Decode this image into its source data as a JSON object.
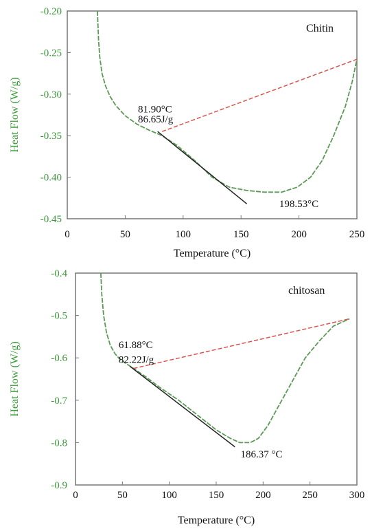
{
  "colors": {
    "curve": "#5a9a55",
    "baseline": "#d9534f",
    "tangent": "#222222",
    "tick_label_y": "#3a9a3a",
    "axis_frame": "#777777"
  },
  "chart_data": [
    {
      "type": "line",
      "title": "Chitin",
      "xlabel": "Temperature (°C)",
      "ylabel": "Heat Flow (W/g)",
      "xlim": [
        0,
        250
      ],
      "ylim": [
        -0.45,
        -0.2
      ],
      "x_ticks": [
        0,
        50,
        100,
        150,
        200,
        250
      ],
      "x_tick_labels": [
        "0",
        "50",
        "100",
        "150",
        "200",
        "250"
      ],
      "y_ticks": [
        -0.2,
        -0.25,
        -0.3,
        -0.35,
        -0.4,
        -0.45
      ],
      "y_tick_labels": [
        "-0.20",
        "-0.25",
        "-0.30",
        "-0.35",
        "-0.40",
        "-0.45"
      ],
      "series": [
        {
          "role": "curve",
          "x": [
            26,
            27,
            28,
            30,
            33,
            37,
            42,
            50,
            60,
            70,
            81.9,
            95,
            110,
            125,
            140,
            155,
            170,
            185,
            198.53,
            210,
            220,
            230,
            240,
            246,
            250
          ],
          "y": [
            -0.2,
            -0.235,
            -0.255,
            -0.275,
            -0.29,
            -0.303,
            -0.314,
            -0.326,
            -0.336,
            -0.343,
            -0.35,
            -0.362,
            -0.38,
            -0.4,
            -0.412,
            -0.416,
            -0.418,
            -0.418,
            -0.412,
            -0.4,
            -0.38,
            -0.35,
            -0.315,
            -0.285,
            -0.258
          ]
        },
        {
          "role": "baseline",
          "x": [
            81.9,
            250
          ],
          "y": [
            -0.345,
            -0.258
          ]
        },
        {
          "role": "tangent",
          "x": [
            78,
            155
          ],
          "y": [
            -0.345,
            -0.432
          ]
        }
      ],
      "annotations": [
        {
          "text": "81.90°C",
          "x": 61,
          "y": -0.322
        },
        {
          "text": "86.65J/g",
          "x": 61,
          "y": -0.334
        },
        {
          "text": "198.53°C",
          "x": 183,
          "y": -0.436
        }
      ]
    },
    {
      "type": "line",
      "title": "chitosan",
      "xlabel": "Temperature (°C)",
      "ylabel": "Heat Flow (W/g)",
      "xlim": [
        0,
        300
      ],
      "ylim": [
        -0.9,
        -0.4
      ],
      "x_ticks": [
        0,
        50,
        100,
        150,
        200,
        250,
        300
      ],
      "x_tick_labels": [
        "0",
        "50",
        "100",
        "150",
        "200",
        "250",
        "300"
      ],
      "y_ticks": [
        -0.4,
        -0.5,
        -0.6,
        -0.7,
        -0.8,
        -0.9
      ],
      "y_tick_labels": [
        "-0.4",
        "-0.5",
        "-0.6",
        "-0.7",
        "-0.8",
        "-0.9"
      ],
      "series": [
        {
          "role": "curve",
          "x": [
            27,
            28,
            30,
            33,
            37,
            42,
            48,
            55,
            61.88,
            75,
            90,
            110,
            130,
            150,
            165,
            175,
            186.37,
            195,
            205,
            215,
            230,
            245,
            260,
            275,
            292
          ],
          "y": [
            -0.4,
            -0.45,
            -0.5,
            -0.54,
            -0.57,
            -0.59,
            -0.605,
            -0.615,
            -0.625,
            -0.645,
            -0.67,
            -0.7,
            -0.735,
            -0.77,
            -0.79,
            -0.8,
            -0.8,
            -0.79,
            -0.76,
            -0.72,
            -0.66,
            -0.6,
            -0.56,
            -0.525,
            -0.508
          ]
        },
        {
          "role": "baseline",
          "x": [
            61.88,
            292
          ],
          "y": [
            -0.625,
            -0.508
          ]
        },
        {
          "role": "tangent",
          "x": [
            58,
            170
          ],
          "y": [
            -0.62,
            -0.81
          ]
        }
      ],
      "annotations": [
        {
          "text": "61.88°C",
          "x": 46,
          "y": -0.577
        },
        {
          "text": "82.22J/g",
          "x": 46,
          "y": -0.612
        },
        {
          "text": "186.37 °C",
          "x": 176,
          "y": -0.835
        }
      ]
    }
  ]
}
